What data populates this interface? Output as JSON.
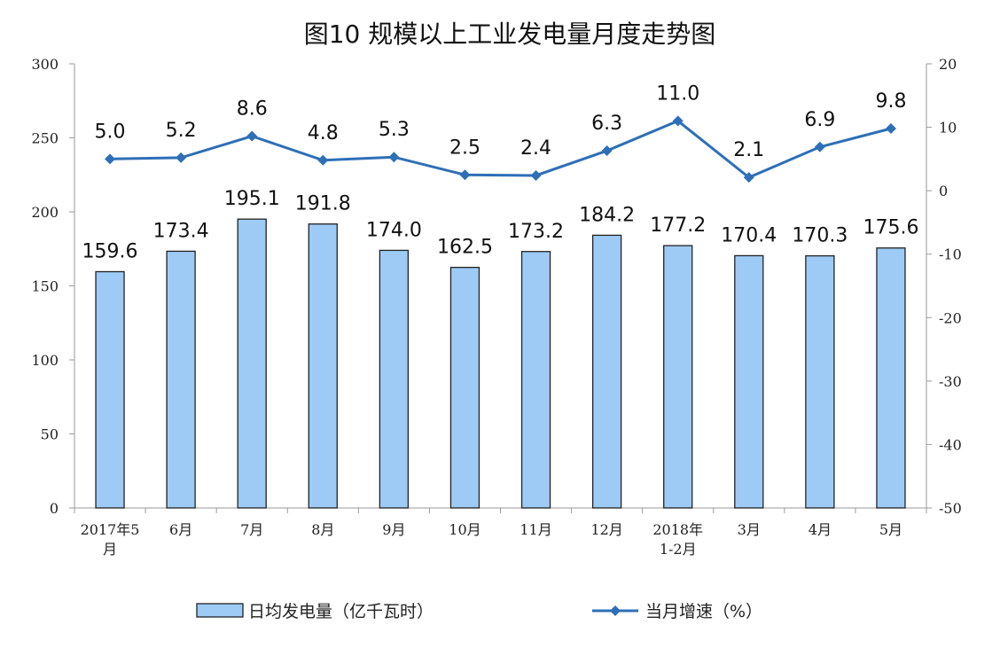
{
  "chart_data": {
    "type": "bar",
    "title": "图10  规模以上工业发电量月度走势图",
    "categories": [
      [
        "2017年5",
        "月"
      ],
      [
        "6月"
      ],
      [
        "7月"
      ],
      [
        "8月"
      ],
      [
        "9月"
      ],
      [
        "10月"
      ],
      [
        "11月"
      ],
      [
        "12月"
      ],
      [
        "2018年",
        "1-2月"
      ],
      [
        "3月"
      ],
      [
        "4月"
      ],
      [
        "5月"
      ]
    ],
    "series": [
      {
        "name": "日均发电量（亿千瓦时）",
        "type": "bar",
        "axis": "left",
        "values": [
          159.6,
          173.4,
          195.1,
          191.8,
          174.0,
          162.5,
          173.2,
          184.2,
          177.2,
          170.4,
          170.3,
          175.6
        ],
        "labels": [
          "159.6",
          "173.4",
          "195.1",
          "191.8",
          "174.0",
          "162.5",
          "173.2",
          "184.2",
          "177.2",
          "170.4",
          "170.3",
          "175.6"
        ]
      },
      {
        "name": "当月增速（%）",
        "type": "line",
        "axis": "right",
        "values": [
          5.0,
          5.2,
          8.6,
          4.8,
          5.3,
          2.5,
          2.4,
          6.3,
          11.0,
          2.1,
          6.9,
          9.8
        ],
        "labels": [
          "5.0",
          "5.2",
          "8.6",
          "4.8",
          "5.3",
          "2.5",
          "2.4",
          "6.3",
          "11.0",
          "2.1",
          "6.9",
          "9.8"
        ]
      }
    ],
    "y_left": {
      "min": 0,
      "max": 300,
      "ticks": [
        "0",
        "50",
        "100",
        "150",
        "200",
        "250",
        "300"
      ]
    },
    "y_right": {
      "min": -50,
      "max": 20,
      "ticks": [
        "-50",
        "-40",
        "-30",
        "-20",
        "-10",
        "0",
        "10",
        "20"
      ]
    },
    "grid": false,
    "legend_position": "bottom",
    "colors": {
      "bar_fill": "#9DCBF5",
      "bar_stroke": "#222222",
      "line": "#2E6FB7",
      "axis": "#9a9a9a"
    }
  }
}
